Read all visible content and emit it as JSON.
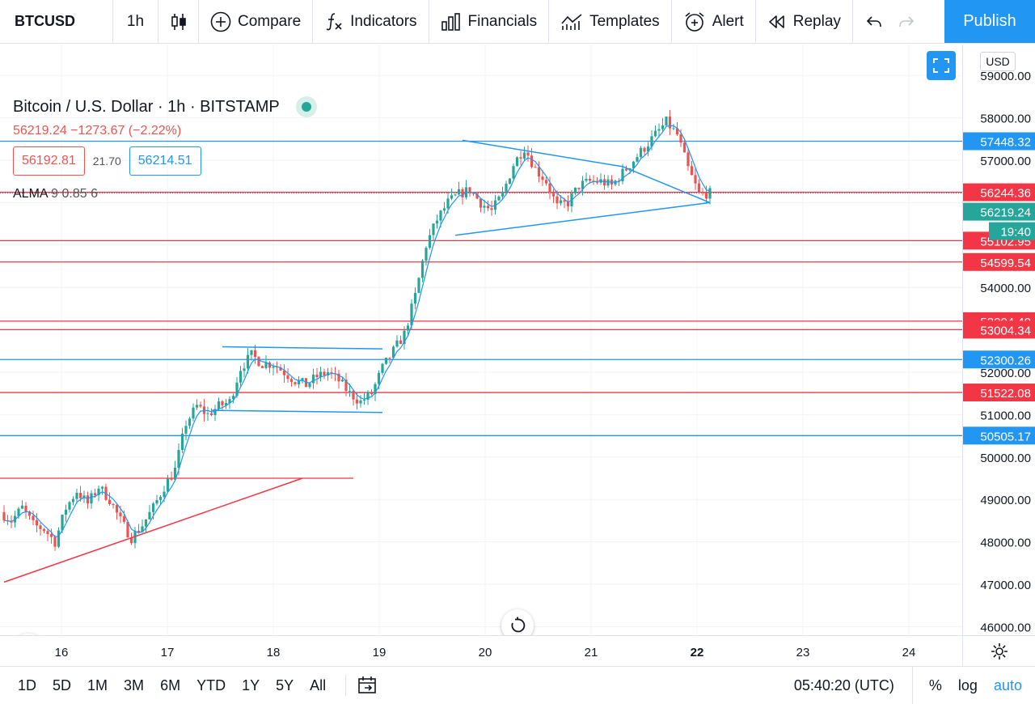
{
  "toolbar": {
    "symbol": "BTCUSD",
    "interval": "1h",
    "compare_label": "Compare",
    "indicators_label": "Indicators",
    "financials_label": "Financials",
    "templates_label": "Templates",
    "alert_label": "Alert",
    "replay_label": "Replay",
    "publish_label": "Publish"
  },
  "legend": {
    "title": "Bitcoin / U.S. Dollar · 1h · BITSTAMP",
    "quote": "56219.24 −1273.67 (−2.22%)",
    "sell_price": "56192.81",
    "spread": "21.70",
    "buy_price": "56214.51",
    "indicator_name": "ALMA",
    "indicator_params": "9 0.85 6"
  },
  "currency": "USD",
  "colors": {
    "up": "#26a69a",
    "down": "#ef5350",
    "blue_line": "#2196f3",
    "red_line": "#f23645",
    "accent": "#2196f3"
  },
  "chart_data": {
    "type": "candlestick",
    "symbol": "BTCUSD",
    "interval": "1h",
    "ylim": [
      45800,
      59700
    ],
    "y_ticks": [
      46000,
      47000,
      48000,
      49000,
      50000,
      51000,
      52000,
      53000,
      54000,
      57000,
      58000,
      59000
    ],
    "x_ticks": [
      "16",
      "17",
      "18",
      "19",
      "20",
      "21",
      "22",
      "23",
      "24"
    ],
    "price_levels": [
      {
        "price": 57448.32,
        "label": "57448.32",
        "color": "blue"
      },
      {
        "price": 56244.36,
        "label": "56244.36",
        "color": "red"
      },
      {
        "price": 55102.95,
        "label": "55102.95",
        "color": "red"
      },
      {
        "price": 54599.54,
        "label": "54599.54",
        "color": "red"
      },
      {
        "price": 53204.4,
        "label": "53204.40",
        "color": "red"
      },
      {
        "price": 53004.34,
        "label": "53004.34",
        "color": "red"
      },
      {
        "price": 52300.26,
        "label": "52300.26",
        "color": "blue"
      },
      {
        "price": 51522.08,
        "label": "51522.08",
        "color": "red"
      },
      {
        "price": 50505.17,
        "label": "50505.17",
        "color": "blue"
      },
      {
        "price": 49500,
        "label": "",
        "color": "red"
      }
    ],
    "last_price": {
      "label": "56219.24",
      "countdown": "19:40"
    },
    "waypoints": [
      [
        0,
        48700
      ],
      [
        3,
        48500
      ],
      [
        6,
        48800
      ],
      [
        9,
        48400
      ],
      [
        12,
        48300
      ],
      [
        15,
        48000
      ],
      [
        18,
        48800
      ],
      [
        21,
        49200
      ],
      [
        24,
        48900
      ],
      [
        27,
        49300
      ],
      [
        30,
        49000
      ],
      [
        33,
        48500
      ],
      [
        36,
        48100
      ],
      [
        39,
        48400
      ],
      [
        42,
        48800
      ],
      [
        45,
        49300
      ],
      [
        48,
        49700
      ],
      [
        51,
        50800
      ],
      [
        54,
        51200
      ],
      [
        57,
        51000
      ],
      [
        60,
        51200
      ],
      [
        63,
        51300
      ],
      [
        66,
        52100
      ],
      [
        69,
        52400
      ],
      [
        72,
        52200
      ],
      [
        75,
        52200
      ],
      [
        78,
        52000
      ],
      [
        81,
        51800
      ],
      [
        84,
        51700
      ],
      [
        87,
        51900
      ],
      [
        90,
        52000
      ],
      [
        93,
        51800
      ],
      [
        96,
        51500
      ],
      [
        99,
        51300
      ],
      [
        102,
        51500
      ],
      [
        105,
        52100
      ],
      [
        108,
        52500
      ],
      [
        111,
        52900
      ],
      [
        114,
        53800
      ],
      [
        117,
        55000
      ],
      [
        120,
        55600
      ],
      [
        123,
        56000
      ],
      [
        126,
        56200
      ],
      [
        129,
        56300
      ],
      [
        132,
        56000
      ],
      [
        135,
        55800
      ],
      [
        138,
        56200
      ],
      [
        141,
        56900
      ],
      [
        144,
        57300
      ],
      [
        147,
        56800
      ],
      [
        150,
        56500
      ],
      [
        153,
        55900
      ],
      [
        156,
        56000
      ],
      [
        159,
        56400
      ],
      [
        162,
        56500
      ],
      [
        165,
        56500
      ],
      [
        168,
        56400
      ],
      [
        171,
        56700
      ],
      [
        174,
        57000
      ],
      [
        177,
        57300
      ],
      [
        180,
        57600
      ],
      [
        183,
        57900
      ],
      [
        186,
        57600
      ],
      [
        189,
        56800
      ],
      [
        192,
        56200
      ],
      [
        194,
        56219
      ]
    ],
    "drawings": [
      {
        "type": "trendline",
        "color": "red",
        "from": [
          0,
          47050
        ],
        "to": [
          82,
          49500
        ]
      },
      {
        "type": "trendline",
        "color": "blue",
        "from": [
          60,
          52600
        ],
        "to": [
          104,
          52550
        ]
      },
      {
        "type": "trendline",
        "color": "blue",
        "from": [
          57,
          51100
        ],
        "to": [
          104,
          51050
        ]
      },
      {
        "type": "trendline",
        "color": "blue",
        "from": [
          126,
          57470
        ],
        "to": [
          170,
          56850
        ]
      },
      {
        "type": "trendline",
        "color": "blue",
        "from": [
          170,
          56850
        ],
        "to": [
          194,
          56000
        ]
      },
      {
        "type": "trendline",
        "color": "blue",
        "from": [
          124,
          55230
        ],
        "to": [
          194,
          56000
        ]
      }
    ]
  },
  "time_axis": {
    "labels": [
      "16",
      "17",
      "18",
      "19",
      "20",
      "21",
      "22",
      "23",
      "24"
    ]
  },
  "bottombar": {
    "ranges": [
      "1D",
      "5D",
      "1M",
      "3M",
      "6M",
      "YTD",
      "1Y",
      "5Y",
      "All"
    ],
    "clock": "05:40:20 (UTC)",
    "percent": "%",
    "log": "log",
    "auto": "auto"
  }
}
